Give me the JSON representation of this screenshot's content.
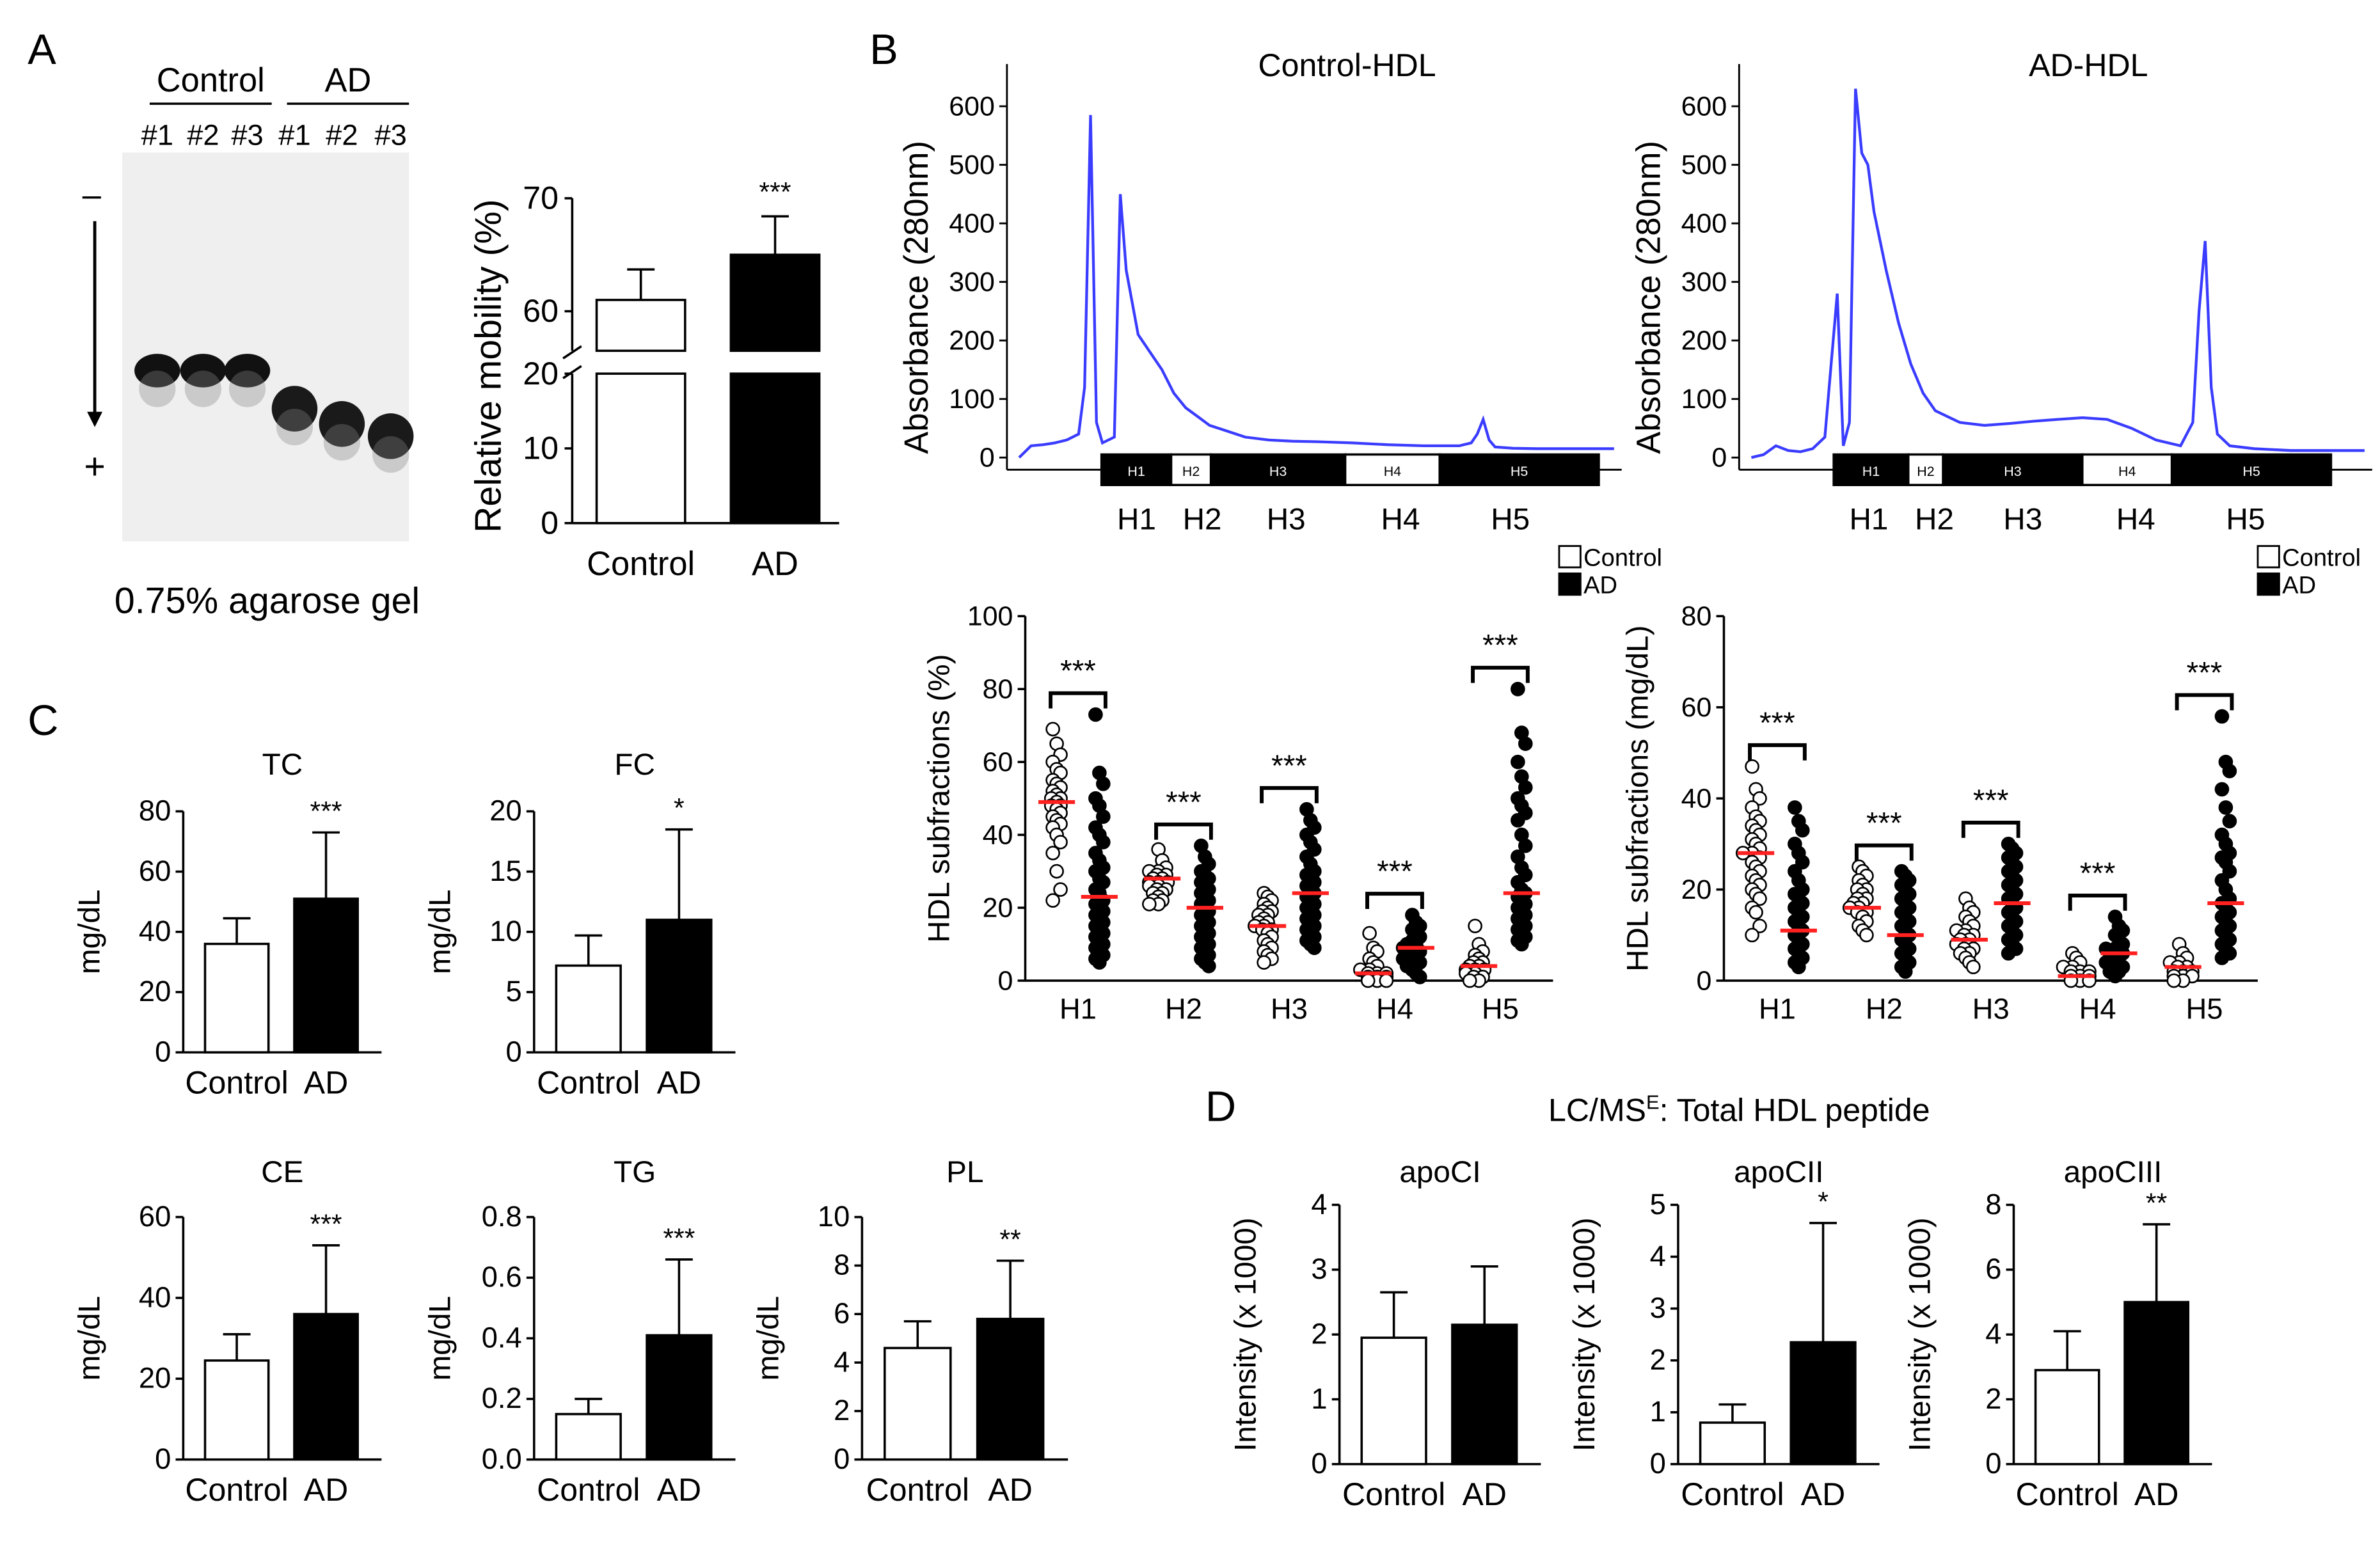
{
  "panel_labels": {
    "A": "A",
    "B": "B",
    "C": "C",
    "D": "D"
  },
  "colors": {
    "axis": "#000000",
    "control": "#ffffff",
    "ad": "#000000",
    "trace": "#3a3cff",
    "median": "#ff2020",
    "gel_bg": "#f2f2f2"
  },
  "gel": {
    "groups": [
      "Control",
      "AD"
    ],
    "lanes": [
      "#1",
      "#2",
      "#3",
      "#1",
      "#2",
      "#3"
    ],
    "minus": "–",
    "plus": "+",
    "caption": "0.75% agarose gel"
  },
  "chart_data": [
    {
      "id": "mobility",
      "type": "bar",
      "categories": [
        "Control",
        "AD"
      ],
      "values": [
        61,
        65
      ],
      "errors": [
        2.7,
        3.4
      ],
      "ylabel": "Relative mobility (%)",
      "ylim_lower": [
        0,
        20
      ],
      "ylim_upper": [
        60,
        70
      ],
      "axis_break": true,
      "yticks_lower": [
        0,
        10,
        20
      ],
      "yticks_upper": [
        60,
        70
      ],
      "significance": [
        "",
        "***"
      ]
    },
    {
      "id": "control_hdl",
      "type": "line",
      "title": "Control-HDL",
      "ylabel": "Absorbance (280nm)",
      "ylim": [
        0,
        620
      ],
      "yticks": [
        0,
        100,
        200,
        300,
        400,
        500,
        600
      ],
      "x": [
        0,
        2,
        4,
        6,
        8,
        10,
        11,
        12,
        13,
        14,
        16,
        17,
        18,
        20,
        22,
        24,
        26,
        28,
        30,
        32,
        35,
        38,
        42,
        46,
        50,
        56,
        62,
        68,
        74,
        76,
        77,
        78,
        79,
        80,
        83,
        87,
        92,
        100
      ],
      "y": [
        0,
        20,
        22,
        25,
        30,
        40,
        120,
        585,
        60,
        25,
        35,
        450,
        320,
        210,
        180,
        150,
        110,
        85,
        70,
        55,
        45,
        35,
        30,
        28,
        27,
        25,
        22,
        20,
        20,
        25,
        40,
        65,
        30,
        18,
        16,
        15,
        15,
        15
      ],
      "fraction_bar": [
        "H1",
        "H2",
        "H3",
        "H4",
        "H5"
      ],
      "fraction_fill": [
        "black",
        "white",
        "black",
        "white",
        "black"
      ],
      "fraction_bounds": [
        0,
        14,
        22,
        49,
        68,
        100
      ]
    },
    {
      "id": "ad_hdl",
      "type": "line",
      "title": "AD-HDL",
      "ylabel": "Absorbance (280nm)",
      "ylim": [
        0,
        620
      ],
      "yticks": [
        0,
        100,
        200,
        300,
        400,
        500,
        600
      ],
      "x": [
        0,
        2,
        4,
        6,
        8,
        10,
        12,
        14,
        15,
        16,
        17,
        18,
        19,
        20,
        22,
        24,
        26,
        28,
        30,
        34,
        38,
        42,
        46,
        50,
        54,
        58,
        62,
        66,
        70,
        72,
        73,
        74,
        75,
        76,
        78,
        82,
        88,
        94,
        100
      ],
      "y": [
        0,
        5,
        20,
        12,
        10,
        15,
        35,
        280,
        20,
        60,
        630,
        520,
        500,
        420,
        320,
        230,
        160,
        110,
        80,
        60,
        55,
        58,
        62,
        65,
        68,
        65,
        50,
        30,
        20,
        60,
        250,
        370,
        120,
        40,
        20,
        15,
        12,
        12,
        12
      ],
      "fraction_bar": [
        "H1",
        "H2",
        "H3",
        "H4",
        "H5"
      ],
      "fraction_fill": [
        "black",
        "white",
        "black",
        "white",
        "black"
      ],
      "fraction_bounds": [
        0,
        15,
        22,
        50,
        68,
        100
      ]
    },
    {
      "id": "hdl_pct",
      "type": "scatter",
      "ylabel": "HDL subfractions (%)",
      "ylim": [
        0,
        100
      ],
      "yticks": [
        0,
        20,
        40,
        60,
        80,
        100
      ],
      "categories": [
        "H1",
        "H2",
        "H3",
        "H4",
        "H5"
      ],
      "legend": [
        "Control",
        "AD"
      ],
      "medians_control": [
        49,
        28,
        15,
        2,
        4
      ],
      "medians_ad": [
        23,
        20,
        24,
        9,
        24
      ],
      "control_points": [
        [
          69,
          65,
          62,
          60,
          58,
          57,
          55,
          54,
          53,
          52,
          51,
          50,
          50,
          49,
          48,
          48,
          47,
          46,
          45,
          44,
          43,
          42,
          40,
          38,
          35,
          30,
          25,
          22
        ],
        [
          36,
          33,
          31,
          30,
          30,
          29,
          29,
          28,
          28,
          27,
          27,
          27,
          26,
          26,
          25,
          25,
          24,
          24,
          23,
          22,
          22,
          21,
          21
        ],
        [
          24,
          23,
          22,
          21,
          20,
          19,
          19,
          18,
          18,
          17,
          16,
          16,
          15,
          15,
          14,
          14,
          13,
          12,
          11,
          10,
          9,
          8,
          7,
          6,
          5
        ],
        [
          13,
          9,
          8,
          6,
          5,
          4,
          3,
          3,
          2,
          2,
          2,
          1,
          1,
          1,
          0,
          0,
          0
        ],
        [
          15,
          10,
          8,
          7,
          6,
          5,
          5,
          4,
          4,
          3,
          3,
          3,
          2,
          2,
          1,
          1,
          0,
          0
        ]
      ],
      "ad_points": [
        [
          73,
          57,
          54,
          50,
          48,
          45,
          42,
          40,
          38,
          35,
          33,
          31,
          30,
          28,
          27,
          25,
          24,
          22,
          21,
          20,
          19,
          18,
          17,
          16,
          15,
          14,
          13,
          12,
          11,
          10,
          9,
          8,
          7,
          6,
          5
        ],
        [
          37,
          34,
          32,
          30,
          29,
          28,
          27,
          26,
          25,
          24,
          23,
          22,
          21,
          20,
          19,
          18,
          17,
          16,
          15,
          14,
          13,
          12,
          11,
          10,
          9,
          8,
          7,
          6,
          5,
          4
        ],
        [
          47,
          44,
          42,
          40,
          38,
          36,
          34,
          32,
          30,
          29,
          28,
          27,
          26,
          25,
          24,
          23,
          22,
          21,
          20,
          19,
          18,
          17,
          16,
          15,
          14,
          13,
          12,
          11,
          10,
          9
        ],
        [
          18,
          16,
          15,
          14,
          13,
          12,
          11,
          10,
          10,
          9,
          9,
          8,
          8,
          7,
          7,
          6,
          6,
          5,
          5,
          4,
          4,
          3,
          2,
          1
        ],
        [
          80,
          68,
          65,
          60,
          56,
          53,
          50,
          48,
          46,
          44,
          40,
          37,
          34,
          31,
          29,
          27,
          25,
          24,
          23,
          22,
          21,
          20,
          19,
          18,
          17,
          16,
          15,
          14,
          13,
          12,
          11,
          10
        ]
      ],
      "significance": [
        "***",
        "***",
        "***",
        "***",
        "***"
      ]
    },
    {
      "id": "hdl_mg",
      "type": "scatter",
      "ylabel": "HDL subfractions (mg/dL)",
      "ylim": [
        0,
        80
      ],
      "yticks": [
        0,
        20,
        40,
        60,
        80
      ],
      "categories": [
        "H1",
        "H2",
        "H3",
        "H4",
        "H5"
      ],
      "legend": [
        "Control",
        "AD"
      ],
      "medians_control": [
        28,
        16,
        9,
        1,
        3
      ],
      "medians_ad": [
        11,
        10,
        17,
        6,
        17
      ],
      "control_points": [
        [
          47,
          42,
          40,
          38,
          36,
          35,
          34,
          33,
          32,
          31,
          30,
          29,
          28,
          28,
          27,
          26,
          25,
          24,
          23,
          22,
          21,
          20,
          19,
          18,
          16,
          15,
          12,
          10
        ],
        [
          25,
          24,
          23,
          22,
          21,
          20,
          20,
          19,
          18,
          18,
          17,
          17,
          16,
          16,
          15,
          15,
          14,
          13,
          12,
          11,
          10
        ],
        [
          18,
          16,
          15,
          14,
          13,
          12,
          11,
          11,
          10,
          10,
          9,
          9,
          8,
          8,
          7,
          7,
          6,
          6,
          5,
          4,
          3
        ],
        [
          6,
          5,
          4,
          3,
          3,
          2,
          2,
          2,
          1,
          1,
          1,
          0,
          0,
          0
        ],
        [
          8,
          6,
          5,
          4,
          4,
          3,
          3,
          2,
          2,
          2,
          1,
          1,
          1,
          0,
          0
        ]
      ],
      "ad_points": [
        [
          38,
          35,
          33,
          30,
          28,
          26,
          24,
          22,
          20,
          19,
          18,
          17,
          16,
          15,
          14,
          13,
          12,
          11,
          10,
          9,
          8,
          7,
          6,
          5,
          4,
          3
        ],
        [
          24,
          23,
          22,
          21,
          20,
          19,
          18,
          17,
          16,
          15,
          14,
          13,
          12,
          11,
          10,
          9,
          8,
          7,
          6,
          5,
          4,
          3,
          2
        ],
        [
          30,
          29,
          28,
          27,
          26,
          25,
          24,
          23,
          22,
          21,
          20,
          19,
          18,
          17,
          16,
          15,
          14,
          13,
          12,
          11,
          10,
          9,
          8,
          7,
          6
        ],
        [
          14,
          12,
          11,
          10,
          9,
          8,
          7,
          7,
          6,
          6,
          5,
          5,
          4,
          4,
          3,
          3,
          2,
          2,
          1
        ],
        [
          58,
          48,
          46,
          42,
          38,
          35,
          32,
          30,
          28,
          27,
          26,
          24,
          22,
          20,
          18,
          17,
          16,
          15,
          14,
          13,
          12,
          11,
          10,
          9,
          8,
          7,
          6,
          5
        ]
      ],
      "significance": [
        "***",
        "***",
        "***",
        "***",
        "***"
      ]
    },
    {
      "id": "tc",
      "type": "bar",
      "title": "TC",
      "ylabel": "mg/dL",
      "categories": [
        "Control",
        "AD"
      ],
      "values": [
        36,
        51
      ],
      "errors": [
        8.5,
        22
      ],
      "ylim": [
        0,
        80
      ],
      "yticks": [
        0,
        20,
        40,
        60,
        80
      ],
      "significance": [
        "",
        "***"
      ]
    },
    {
      "id": "fc",
      "type": "bar",
      "title": "FC",
      "ylabel": "mg/dL",
      "categories": [
        "Control",
        "AD"
      ],
      "values": [
        7.2,
        11
      ],
      "errors": [
        2.5,
        7.5
      ],
      "ylim": [
        0,
        20
      ],
      "yticks": [
        0,
        5,
        10,
        15,
        20
      ],
      "significance": [
        "",
        "*"
      ]
    },
    {
      "id": "ce",
      "type": "bar",
      "title": "CE",
      "ylabel": "mg/dL",
      "categories": [
        "Control",
        "AD"
      ],
      "values": [
        24.5,
        36
      ],
      "errors": [
        6.5,
        17
      ],
      "ylim": [
        0,
        60
      ],
      "yticks": [
        0,
        20,
        40,
        60
      ],
      "significance": [
        "",
        "***"
      ]
    },
    {
      "id": "tg",
      "type": "bar",
      "title": "TG",
      "ylabel": "mg/dL",
      "categories": [
        "Control",
        "AD"
      ],
      "values": [
        0.15,
        0.41
      ],
      "errors": [
        0.05,
        0.25
      ],
      "ylim": [
        0,
        0.8
      ],
      "yticks": [
        "0.0",
        "0.2",
        "0.4",
        "0.6",
        "0.8"
      ],
      "significance": [
        "",
        "***"
      ]
    },
    {
      "id": "pl",
      "type": "bar",
      "title": "PL",
      "ylabel": "mg/dL",
      "categories": [
        "Control",
        "AD"
      ],
      "values": [
        4.6,
        5.8
      ],
      "errors": [
        1.1,
        2.4
      ],
      "ylim": [
        0,
        10
      ],
      "yticks": [
        0,
        2,
        4,
        6,
        8,
        10
      ],
      "significance": [
        "",
        "**"
      ]
    },
    {
      "id": "apoci",
      "type": "bar",
      "title": "apoCI",
      "ylabel": "Intensity (x 1000)",
      "categories": [
        "Control",
        "AD"
      ],
      "values": [
        1.95,
        2.15
      ],
      "errors": [
        0.7,
        0.9
      ],
      "ylim": [
        0,
        4
      ],
      "yticks": [
        0,
        1,
        2,
        3,
        4
      ],
      "significance": [
        "",
        ""
      ]
    },
    {
      "id": "apocii",
      "type": "bar",
      "title": "apoCII",
      "ylabel": "Intensity (x 1000)",
      "categories": [
        "Control",
        "AD"
      ],
      "values": [
        0.8,
        2.35
      ],
      "errors": [
        0.35,
        2.3
      ],
      "ylim": [
        0,
        5
      ],
      "yticks": [
        0,
        1,
        2,
        3,
        4,
        5
      ],
      "significance": [
        "",
        "*"
      ]
    },
    {
      "id": "apociii",
      "type": "bar",
      "title": "apoCIII",
      "ylabel": "Intensity (x 1000)",
      "categories": [
        "Control",
        "AD"
      ],
      "values": [
        2.9,
        5.0
      ],
      "errors": [
        1.2,
        2.4
      ],
      "ylim": [
        0,
        8
      ],
      "yticks": [
        0,
        2,
        4,
        6,
        8
      ],
      "significance": [
        "",
        "**"
      ]
    }
  ],
  "panel_d_title_main": "LC/MS",
  "panel_d_title_sup": "E",
  "panel_d_title_rest": ": Total HDL peptide"
}
